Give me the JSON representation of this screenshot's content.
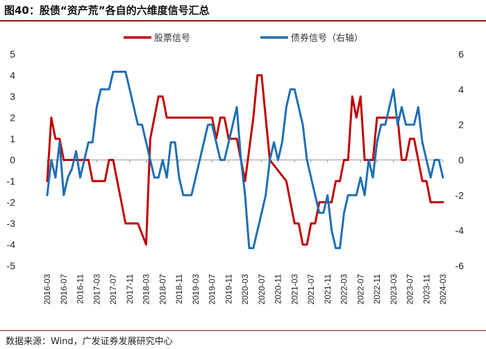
{
  "figure": {
    "title": "图40：股债“资产荒”各自的六维度信号汇总",
    "source": "数据来源：Wind，广发证券发展研究中心"
  },
  "chart_data": {
    "type": "line",
    "x_start": "2016-03",
    "x_end": "2024-03",
    "x_tick_labels": [
      "2016-03",
      "2016-07",
      "2016-11",
      "2017-03",
      "2017-07",
      "2017-11",
      "2018-03",
      "2018-07",
      "2018-11",
      "2019-03",
      "2019-07",
      "2019-11",
      "2020-03",
      "2020-07",
      "2020-11",
      "2021-03",
      "2021-07",
      "2021-11",
      "2022-03",
      "2022-07",
      "2022-11",
      "2023-03",
      "2023-07",
      "2023-11",
      "2024-03"
    ],
    "y_left": {
      "ylim": [
        -5,
        5
      ],
      "ticks": [
        5,
        4,
        3,
        2,
        1,
        0,
        -1,
        -2,
        -3,
        -4,
        -5
      ]
    },
    "y_right": {
      "ylim": [
        -6,
        6
      ],
      "ticks": [
        6,
        4,
        2,
        0,
        -2,
        -4,
        -6
      ]
    },
    "legend_position": "top",
    "series": [
      {
        "name": "股票信号",
        "axis": "left",
        "color": "#c00000",
        "points": [
          [
            "2016-03",
            -1
          ],
          [
            "2016-04",
            2
          ],
          [
            "2016-05",
            1
          ],
          [
            "2016-06",
            1
          ],
          [
            "2016-07",
            0
          ],
          [
            "2016-11",
            0
          ],
          [
            "2017-01",
            0
          ],
          [
            "2017-02",
            -1
          ],
          [
            "2017-05",
            -1
          ],
          [
            "2017-06",
            0
          ],
          [
            "2017-07",
            0
          ],
          [
            "2017-08",
            -1
          ],
          [
            "2017-09",
            -2
          ],
          [
            "2017-10",
            -3
          ],
          [
            "2018-01",
            -3
          ],
          [
            "2018-03",
            -4
          ],
          [
            "2018-04",
            1
          ],
          [
            "2018-05",
            2
          ],
          [
            "2018-06",
            3
          ],
          [
            "2018-07",
            3
          ],
          [
            "2018-08",
            2
          ],
          [
            "2019-02",
            2
          ],
          [
            "2019-07",
            2
          ],
          [
            "2019-08",
            1
          ],
          [
            "2019-09",
            2
          ],
          [
            "2019-10",
            2
          ],
          [
            "2019-11",
            1
          ],
          [
            "2020-01",
            1
          ],
          [
            "2020-03",
            -1
          ],
          [
            "2020-05",
            2
          ],
          [
            "2020-06",
            4
          ],
          [
            "2020-07",
            4
          ],
          [
            "2020-08",
            2
          ],
          [
            "2020-09",
            0
          ],
          [
            "2021-01",
            -1
          ],
          [
            "2021-02",
            -2
          ],
          [
            "2021-03",
            -3
          ],
          [
            "2021-04",
            -3
          ],
          [
            "2021-05",
            -4
          ],
          [
            "2021-06",
            -4
          ],
          [
            "2021-07",
            -3
          ],
          [
            "2021-08",
            -3
          ],
          [
            "2021-09",
            -2
          ],
          [
            "2021-11",
            -2
          ],
          [
            "2021-12",
            -2
          ],
          [
            "2022-01",
            -1
          ],
          [
            "2022-02",
            -1
          ],
          [
            "2022-03",
            0
          ],
          [
            "2022-04",
            0
          ],
          [
            "2022-05",
            3
          ],
          [
            "2022-06",
            2
          ],
          [
            "2022-07",
            3
          ],
          [
            "2022-08",
            0
          ],
          [
            "2022-10",
            0
          ],
          [
            "2022-11",
            2
          ],
          [
            "2023-01",
            2
          ],
          [
            "2023-02",
            2
          ],
          [
            "2023-04",
            2
          ],
          [
            "2023-05",
            0
          ],
          [
            "2023-06",
            0
          ],
          [
            "2023-07",
            1
          ],
          [
            "2023-08",
            1
          ],
          [
            "2023-09",
            0
          ],
          [
            "2023-10",
            -1
          ],
          [
            "2023-11",
            -1
          ],
          [
            "2023-12",
            -2
          ],
          [
            "2024-03",
            -2
          ]
        ]
      },
      {
        "name": "债券信号（右轴）",
        "axis": "right",
        "color": "#1f6fb2",
        "points": [
          [
            "2016-03",
            -2
          ],
          [
            "2016-04",
            0
          ],
          [
            "2016-05",
            -1
          ],
          [
            "2016-06",
            1
          ],
          [
            "2016-07",
            -2
          ],
          [
            "2016-08",
            -1
          ],
          [
            "2016-09",
            -0.5
          ],
          [
            "2016-10",
            0.5
          ],
          [
            "2016-11",
            -1
          ],
          [
            "2017-01",
            1
          ],
          [
            "2017-02",
            1
          ],
          [
            "2017-03",
            3
          ],
          [
            "2017-04",
            4
          ],
          [
            "2017-05",
            4
          ],
          [
            "2017-06",
            4
          ],
          [
            "2017-07",
            5
          ],
          [
            "2017-08",
            5
          ],
          [
            "2017-09",
            5
          ],
          [
            "2017-10",
            5
          ],
          [
            "2017-11",
            4
          ],
          [
            "2017-12",
            3
          ],
          [
            "2018-01",
            2
          ],
          [
            "2018-02",
            2
          ],
          [
            "2018-03",
            1
          ],
          [
            "2018-04",
            0
          ],
          [
            "2018-05",
            -1
          ],
          [
            "2018-06",
            -1
          ],
          [
            "2018-07",
            0
          ],
          [
            "2018-08",
            -1
          ],
          [
            "2018-09",
            1
          ],
          [
            "2018-10",
            1
          ],
          [
            "2018-11",
            -1
          ],
          [
            "2018-12",
            -2
          ],
          [
            "2019-01",
            -2
          ],
          [
            "2019-02",
            -2
          ],
          [
            "2019-03",
            -1
          ],
          [
            "2019-04",
            0
          ],
          [
            "2019-05",
            1
          ],
          [
            "2019-06",
            2
          ],
          [
            "2019-07",
            2
          ],
          [
            "2019-08",
            1
          ],
          [
            "2019-09",
            0
          ],
          [
            "2019-10",
            0
          ],
          [
            "2019-11",
            1
          ],
          [
            "2019-12",
            2
          ],
          [
            "2020-01",
            3
          ],
          [
            "2020-02",
            0
          ],
          [
            "2020-03",
            -2
          ],
          [
            "2020-04",
            -5
          ],
          [
            "2020-05",
            -5
          ],
          [
            "2020-06",
            -4
          ],
          [
            "2020-07",
            -3
          ],
          [
            "2020-08",
            -2
          ],
          [
            "2020-09",
            0
          ],
          [
            "2020-10",
            1
          ],
          [
            "2020-11",
            0
          ],
          [
            "2020-12",
            1
          ],
          [
            "2021-01",
            3
          ],
          [
            "2021-02",
            4
          ],
          [
            "2021-03",
            4
          ],
          [
            "2021-04",
            3
          ],
          [
            "2021-05",
            2
          ],
          [
            "2021-06",
            0
          ],
          [
            "2021-07",
            -1
          ],
          [
            "2021-08",
            -2
          ],
          [
            "2021-09",
            -3
          ],
          [
            "2021-10",
            -3
          ],
          [
            "2021-11",
            -2
          ],
          [
            "2021-12",
            -4
          ],
          [
            "2022-01",
            -5
          ],
          [
            "2022-02",
            -5
          ],
          [
            "2022-03",
            -3
          ],
          [
            "2022-04",
            -2
          ],
          [
            "2022-05",
            -2
          ],
          [
            "2022-06",
            -2
          ],
          [
            "2022-07",
            -1
          ],
          [
            "2022-08",
            -2
          ],
          [
            "2022-09",
            0
          ],
          [
            "2022-10",
            -1
          ],
          [
            "2022-11",
            1
          ],
          [
            "2022-12",
            2
          ],
          [
            "2023-01",
            2
          ],
          [
            "2023-02",
            3
          ],
          [
            "2023-03",
            4
          ],
          [
            "2023-04",
            2
          ],
          [
            "2023-05",
            3
          ],
          [
            "2023-06",
            2
          ],
          [
            "2023-07",
            2
          ],
          [
            "2023-08",
            2
          ],
          [
            "2023-09",
            3
          ],
          [
            "2023-10",
            1
          ],
          [
            "2023-11",
            0
          ],
          [
            "2023-12",
            -1
          ],
          [
            "2024-01",
            0
          ],
          [
            "2024-02",
            0
          ],
          [
            "2024-03",
            -1
          ]
        ]
      }
    ]
  }
}
